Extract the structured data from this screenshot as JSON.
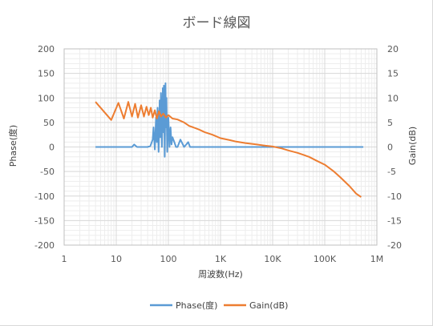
{
  "chart_data": {
    "type": "line",
    "title": "ボード線図",
    "xlabel": "周波数(Hz)",
    "ylabel_left": "Phase(度)",
    "ylabel_right": "Gain(dB)",
    "x_scale": "log",
    "xlim": [
      1,
      1000000
    ],
    "ylim_left": [
      -200,
      200
    ],
    "ylim_right": [
      -20,
      20
    ],
    "x_tick_labels": [
      "1",
      "10",
      "100",
      "1K",
      "10K",
      "100K",
      "1M"
    ],
    "y_left_tick_labels": [
      "200",
      "150",
      "100",
      "50",
      "0",
      "-50",
      "-100",
      "-150",
      "-200"
    ],
    "y_right_tick_labels": [
      "20",
      "15",
      "10",
      "5",
      "0",
      "-5",
      "-10",
      "-15",
      "-20"
    ],
    "grid": true,
    "legend_position": "bottom",
    "series": [
      {
        "name": "Phase(度)",
        "axis": "left",
        "color": "#5b9bd5",
        "x": [
          4,
          20,
          22,
          25,
          40,
          45,
          50,
          52,
          55,
          58,
          60,
          62,
          65,
          68,
          70,
          72,
          75,
          78,
          80,
          82,
          85,
          88,
          90,
          92,
          95,
          100,
          105,
          110,
          115,
          120,
          130,
          140,
          150,
          170,
          200,
          220,
          240,
          260,
          300,
          1000,
          10000,
          100000,
          550000
        ],
        "y": [
          0,
          0,
          5,
          0,
          0,
          2,
          15,
          40,
          -5,
          60,
          10,
          80,
          -10,
          95,
          20,
          110,
          0,
          120,
          30,
          125,
          -20,
          130,
          40,
          100,
          -10,
          60,
          0,
          40,
          5,
          20,
          10,
          0,
          0,
          15,
          0,
          5,
          10,
          0,
          0,
          0,
          0,
          0,
          0
        ]
      },
      {
        "name": "Gain(dB)",
        "axis": "right",
        "color": "#ed7d31",
        "x": [
          4,
          8,
          11,
          14,
          17,
          20,
          23,
          26,
          30,
          34,
          38,
          42,
          46,
          50,
          55,
          60,
          66,
          72,
          80,
          90,
          100,
          120,
          150,
          200,
          250,
          300,
          400,
          500,
          700,
          1000,
          1500,
          2000,
          3000,
          5000,
          7000,
          10000,
          15000,
          20000,
          30000,
          50000,
          70000,
          100000,
          150000,
          200000,
          300000,
          400000,
          500000
        ],
        "y": [
          9.2,
          5.5,
          9.0,
          5.8,
          9.2,
          6.2,
          8.8,
          6.0,
          8.5,
          6.2,
          8.2,
          6.5,
          8.0,
          6.0,
          7.5,
          5.8,
          7.3,
          6.2,
          6.8,
          6.0,
          6.5,
          5.8,
          5.6,
          5.0,
          4.3,
          4.0,
          3.5,
          3.0,
          2.5,
          1.8,
          1.4,
          1.1,
          0.8,
          0.5,
          0.3,
          0.1,
          -0.3,
          -0.7,
          -1.2,
          -2.0,
          -2.8,
          -3.6,
          -5.0,
          -6.2,
          -8.0,
          -9.5,
          -10.2
        ]
      }
    ]
  }
}
